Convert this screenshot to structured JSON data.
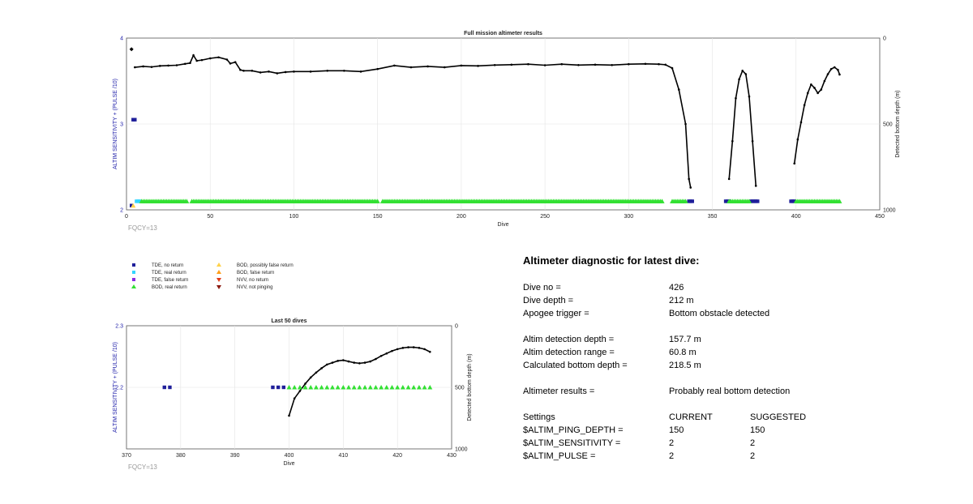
{
  "charts": [
    {
      "title": "Full mission altimeter results",
      "xlabel": "Dive",
      "ylabel_left": "ALTIM SENSITIVITY + (PULSE /10)",
      "ylabel_right": "Detected bottom depth (m)",
      "xticks": [
        "0",
        "50",
        "100",
        "150",
        "200",
        "250",
        "300",
        "350",
        "400",
        "450"
      ],
      "yticks_left": [
        "4",
        "3",
        "2"
      ],
      "yticks_right": [
        "0",
        "500",
        "1000"
      ],
      "fqcy_label": "FQCY=13"
    },
    {
      "title": "Last 50 dives",
      "xlabel": "Dive",
      "ylabel_left": "ALTIM SENSITIVITY + (PULSE /10)",
      "ylabel_right": "Detected bottom depth (m)",
      "xticks": [
        "370",
        "380",
        "390",
        "400",
        "410",
        "420",
        "430"
      ],
      "yticks_left": [
        "2.3",
        "2.2"
      ],
      "yticks_right": [
        "0",
        "500",
        "1000"
      ],
      "fqcy_label": "FQCY=13"
    }
  ],
  "legend": [
    {
      "label": "TDE, no return",
      "marker": "square",
      "color": "#1f1f9a"
    },
    {
      "label": "TDE, real return",
      "marker": "square",
      "color": "#33d6ff"
    },
    {
      "label": "TDE, false return",
      "marker": "square",
      "color": "#8a2be2"
    },
    {
      "label": "BOD, real return",
      "marker": "triangle-up",
      "color": "#33e033"
    },
    {
      "label": "BOD, possibly false return",
      "marker": "triangle-up",
      "color": "#ffd24a"
    },
    {
      "label": "BOD, false return",
      "marker": "triangle-up",
      "color": "#ff9f1a"
    },
    {
      "label": "NVV, no return",
      "marker": "triangle-down",
      "color": "#e03c1a"
    },
    {
      "label": "NVV, not pinging",
      "marker": "triangle-down",
      "color": "#8b1a10"
    }
  ],
  "chart_data": [
    {
      "type": "scatter",
      "title": "Full mission altimeter results",
      "xlim": [
        0,
        450
      ],
      "ylim_left": [
        2,
        4
      ],
      "ylim_right": [
        0,
        1000
      ],
      "series": [
        {
          "name": "Detected bottom depth",
          "kind": "line",
          "x": [
            5,
            10,
            15,
            20,
            25,
            30,
            35,
            38,
            40,
            42,
            45,
            50,
            55,
            60,
            62,
            65,
            68,
            70,
            75,
            80,
            85,
            90,
            95,
            100,
            110,
            120,
            130,
            140,
            150,
            160,
            170,
            180,
            190,
            200,
            210,
            220,
            230,
            240,
            250,
            260,
            270,
            280,
            290,
            300,
            310,
            318,
            322,
            326,
            330,
            334,
            336,
            337
          ],
          "y": [
            170,
            165,
            168,
            162,
            160,
            158,
            150,
            145,
            100,
            132,
            128,
            118,
            112,
            125,
            148,
            140,
            185,
            190,
            190,
            200,
            195,
            205,
            198,
            195,
            195,
            190,
            190,
            195,
            180,
            160,
            170,
            165,
            170,
            160,
            162,
            157,
            155,
            152,
            158,
            152,
            157,
            155,
            157,
            152,
            150,
            152,
            155,
            175,
            300,
            500,
            820,
            870
          ]
        },
        {
          "name": "Detected bottom depth",
          "kind": "line",
          "x": [
            360,
            362,
            364,
            366,
            368,
            370,
            372,
            374,
            376
          ],
          "y": [
            820,
            600,
            350,
            240,
            190,
            210,
            340,
            600,
            860
          ]
        },
        {
          "name": "Detected bottom depth",
          "kind": "line",
          "x": [
            399,
            401,
            403,
            405,
            407,
            409,
            411,
            413,
            415,
            417,
            419,
            421,
            423,
            425,
            426
          ],
          "y": [
            730,
            590,
            490,
            390,
            320,
            270,
            290,
            320,
            300,
            250,
            210,
            180,
            170,
            185,
            212
          ]
        },
        {
          "name": "TDE, no return",
          "kind": "square",
          "x": [
            3,
            4,
            5,
            336,
            337,
            338,
            358,
            359,
            360,
            373,
            374,
            375,
            376,
            377,
            397,
            398,
            399
          ],
          "y": [
            2.05,
            3.05,
            3.05,
            2.1,
            2.1,
            2.1,
            2.1,
            2.1,
            2.1,
            2.1,
            2.1,
            2.1,
            2.1,
            2.1,
            2.1,
            2.1,
            2.1
          ]
        },
        {
          "name": "TDE, real return",
          "kind": "square",
          "x": [
            6,
            7,
            8
          ],
          "y": [
            2.1,
            2.1,
            2.1
          ]
        },
        {
          "name": "BOD, real return",
          "kind": "triangle",
          "x_ranges": [
            [
              9,
              36
            ],
            [
              39,
              150
            ],
            [
              153,
              320
            ],
            [
              326,
              334
            ],
            [
              360,
              372
            ],
            [
              400,
              426
            ]
          ],
          "y": 2.1
        },
        {
          "name": "BOD, possibly false return",
          "kind": "triangle",
          "x": [
            4
          ],
          "y": [
            2.05
          ]
        }
      ],
      "extra_points": [
        {
          "x": 3,
          "y_right": 65
        }
      ]
    },
    {
      "type": "scatter",
      "title": "Last 50 dives",
      "xlim": [
        370,
        430
      ],
      "ylim_left": [
        2.1,
        2.3
      ],
      "ylim_right": [
        0,
        1000
      ],
      "series": [
        {
          "name": "Detected bottom depth",
          "kind": "line",
          "x": [
            400,
            401,
            402,
            403,
            404,
            405,
            406,
            407,
            408,
            409,
            410,
            411,
            412,
            413,
            414,
            415,
            416,
            417,
            418,
            419,
            420,
            421,
            422,
            423,
            424,
            425,
            426
          ],
          "y": [
            730,
            590,
            530,
            470,
            420,
            380,
            345,
            315,
            300,
            285,
            280,
            290,
            300,
            305,
            300,
            290,
            270,
            245,
            225,
            205,
            190,
            180,
            175,
            175,
            180,
            190,
            212
          ]
        },
        {
          "name": "TDE, no return",
          "kind": "square",
          "x": [
            377,
            378,
            397,
            398,
            399
          ],
          "y": [
            2.2,
            2.2,
            2.2,
            2.2,
            2.2
          ]
        },
        {
          "name": "BOD, real return",
          "kind": "triangle",
          "x": [
            400,
            401,
            402,
            403,
            404,
            405,
            406,
            407,
            408,
            409,
            410,
            411,
            412,
            413,
            414,
            415,
            416,
            417,
            418,
            419,
            420,
            421,
            422,
            423,
            424,
            425,
            426
          ],
          "y": 2.2
        }
      ]
    }
  ],
  "diagnostic": {
    "title": "Altimeter diagnostic for latest dive:",
    "rows1": [
      {
        "label": "Dive no =",
        "value": "426"
      },
      {
        "label": "Dive depth =",
        "value": "212 m"
      },
      {
        "label": "Apogee trigger =",
        "value": "Bottom obstacle detected"
      }
    ],
    "rows2": [
      {
        "label": "Altim detection depth =",
        "value": "157.7 m"
      },
      {
        "label": "Altim detection range =",
        "value": "60.8 m"
      },
      {
        "label": "Calculated bottom depth =",
        "value": "218.5 m"
      }
    ],
    "rows3": [
      {
        "label": "Altimeter results =",
        "value": "Probably real bottom detection"
      }
    ],
    "settings_header": {
      "label": "Settings",
      "current": "CURRENT",
      "suggested": "SUGGESTED"
    },
    "settings": [
      {
        "label": "$ALTIM_PING_DEPTH =",
        "current": "150",
        "suggested": "150"
      },
      {
        "label": "$ALTIM_SENSITIVITY =",
        "current": "2",
        "suggested": "2"
      },
      {
        "label": "$ALTIM_PULSE =",
        "current": "2",
        "suggested": "2"
      }
    ]
  }
}
